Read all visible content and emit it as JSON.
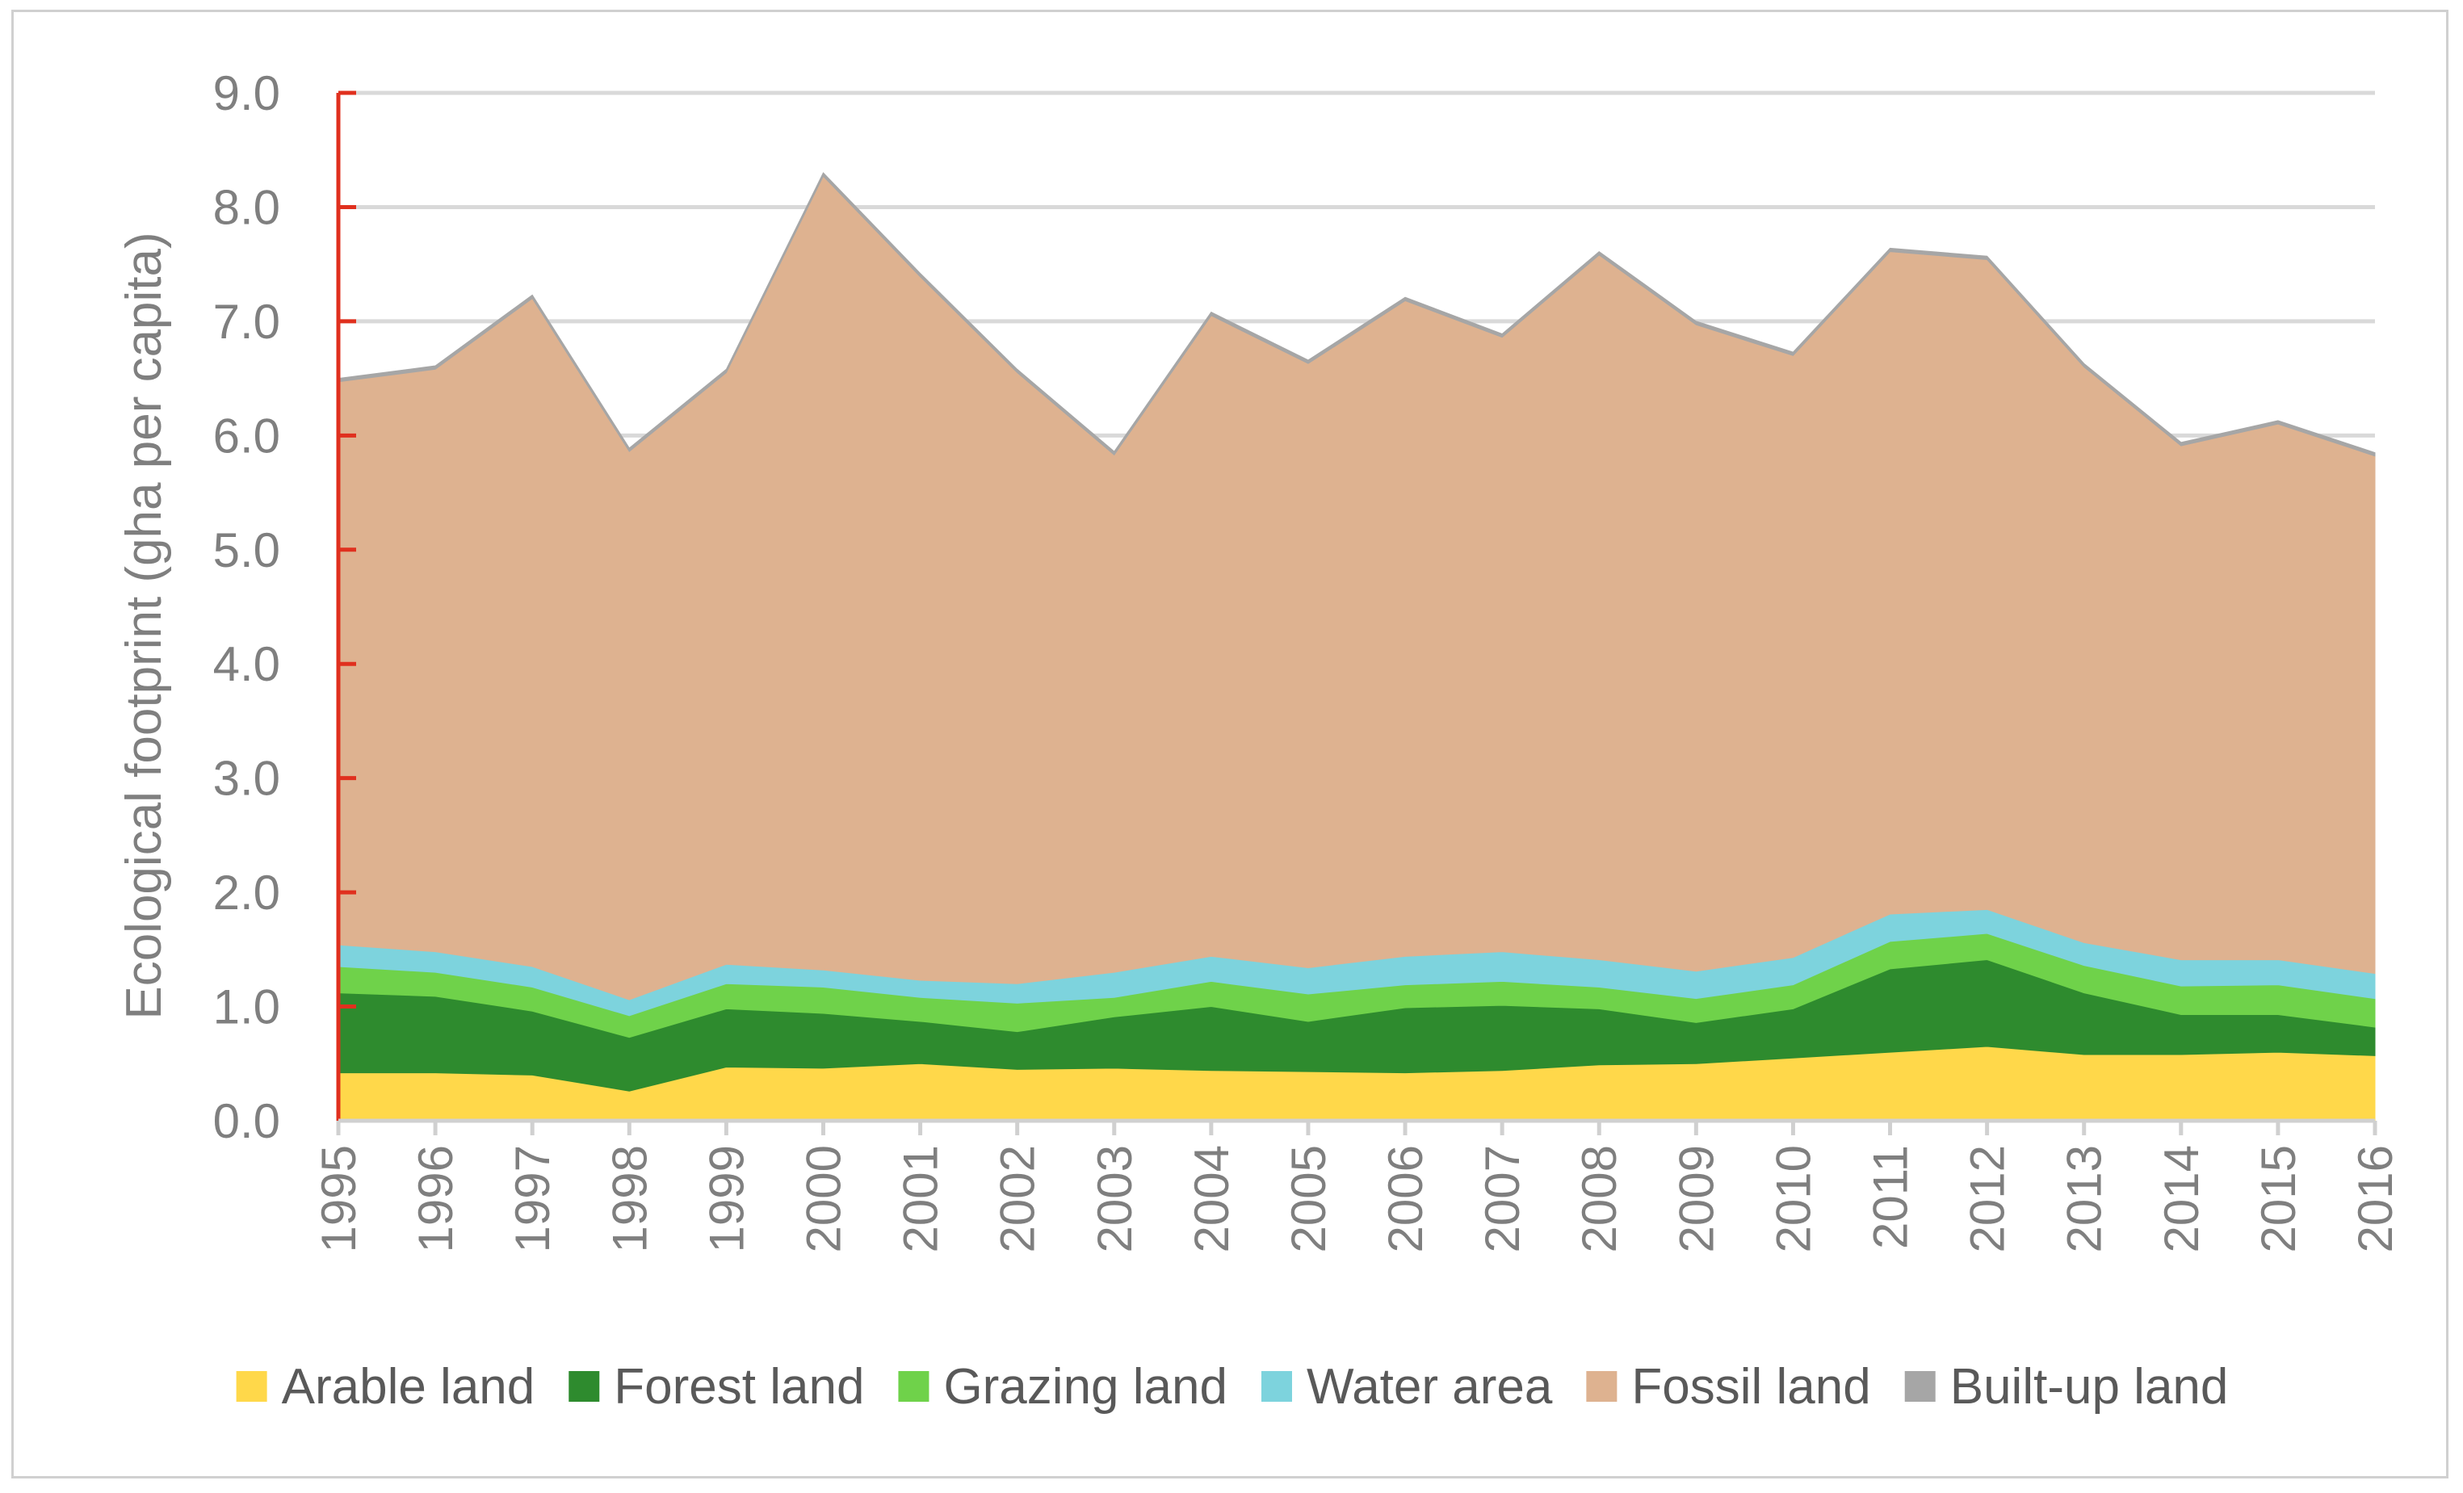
{
  "chart_data": {
    "type": "area",
    "stacked": true,
    "title": "",
    "xlabel": "",
    "ylabel": "Ecological footprint (gha per capita)",
    "ylim": [
      0,
      9
    ],
    "ytick_step": 1,
    "ytick_labels": [
      "0.0",
      "1.0",
      "2.0",
      "3.0",
      "4.0",
      "5.0",
      "6.0",
      "7.0",
      "8.0",
      "9.0"
    ],
    "grid": true,
    "legend_position": "bottom",
    "categories": [
      "1995",
      "1996",
      "1997",
      "1998",
      "1999",
      "2000",
      "2001",
      "2002",
      "2003",
      "2004",
      "2005",
      "2006",
      "2007",
      "2008",
      "2009",
      "2010",
      "2011",
      "2012",
      "2013",
      "2014",
      "2015",
      "2016"
    ],
    "series": [
      {
        "name": "Arable land",
        "color": "#FFD84A",
        "values": [
          0.42,
          0.42,
          0.4,
          0.26,
          0.47,
          0.46,
          0.5,
          0.45,
          0.46,
          0.44,
          0.43,
          0.42,
          0.44,
          0.49,
          0.5,
          0.55,
          0.6,
          0.65,
          0.58,
          0.58,
          0.6,
          0.57
        ]
      },
      {
        "name": "Forest land",
        "color": "#2E8B2E",
        "values": [
          0.7,
          0.67,
          0.56,
          0.47,
          0.51,
          0.48,
          0.37,
          0.33,
          0.45,
          0.56,
          0.44,
          0.57,
          0.57,
          0.49,
          0.36,
          0.43,
          0.73,
          0.76,
          0.54,
          0.35,
          0.33,
          0.25
        ]
      },
      {
        "name": "Grazing land",
        "color": "#6FD24A",
        "values": [
          0.23,
          0.21,
          0.21,
          0.19,
          0.22,
          0.23,
          0.21,
          0.25,
          0.17,
          0.22,
          0.24,
          0.2,
          0.21,
          0.19,
          0.21,
          0.21,
          0.24,
          0.23,
          0.24,
          0.25,
          0.26,
          0.25
        ]
      },
      {
        "name": "Water area",
        "color": "#7DD3DD",
        "values": [
          0.19,
          0.18,
          0.18,
          0.14,
          0.17,
          0.15,
          0.15,
          0.17,
          0.22,
          0.22,
          0.23,
          0.25,
          0.26,
          0.24,
          0.24,
          0.24,
          0.24,
          0.21,
          0.2,
          0.23,
          0.22,
          0.22
        ]
      },
      {
        "name": "Fossil land",
        "color": "#DEB290",
        "values": [
          4.93,
          5.1,
          5.85,
          4.8,
          5.18,
          6.95,
          6.16,
          5.35,
          4.53,
          5.61,
          5.29,
          5.74,
          5.38,
          6.17,
          5.66,
          5.27,
          5.8,
          5.69,
          5.04,
          4.5,
          4.69,
          4.53
        ]
      },
      {
        "name": "Built-up land",
        "color": "#A6A6A6",
        "values": [
          0.03,
          0.03,
          0.03,
          0.03,
          0.03,
          0.03,
          0.03,
          0.03,
          0.03,
          0.03,
          0.03,
          0.03,
          0.03,
          0.03,
          0.03,
          0.03,
          0.03,
          0.03,
          0.03,
          0.03,
          0.03,
          0.03
        ]
      }
    ]
  }
}
